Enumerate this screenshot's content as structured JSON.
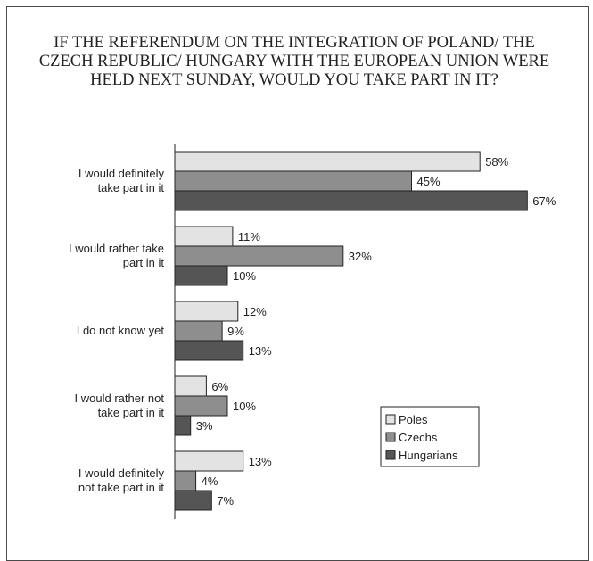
{
  "chart_data": {
    "type": "bar",
    "orientation": "horizontal",
    "title": "IF THE REFERENDUM ON THE INTEGRATION OF POLAND/ THE CZECH REPUBLIC/ HUNGARY WITH THE EUROPEAN UNION WERE HELD NEXT SUNDAY, WOULD YOU TAKE PART IN IT?",
    "categories": [
      [
        "I would definitely",
        "take part in it"
      ],
      [
        "I would rather take",
        "part in it"
      ],
      [
        "I do not know yet"
      ],
      [
        "I would rather not",
        "take part in it"
      ],
      [
        "I would definitely",
        "not take part in it"
      ]
    ],
    "series": [
      {
        "name": "Poles",
        "color": "#e3e3e3",
        "values": [
          58,
          11,
          12,
          6,
          13
        ]
      },
      {
        "name": "Czechs",
        "color": "#8e8e8e",
        "values": [
          45,
          32,
          9,
          10,
          4
        ]
      },
      {
        "name": "Hungarians",
        "color": "#555555",
        "values": [
          67,
          10,
          13,
          3,
          7
        ]
      }
    ],
    "value_suffix": "%",
    "xlim": [
      0,
      67
    ],
    "legend_position": "bottom-right",
    "grid": false
  }
}
